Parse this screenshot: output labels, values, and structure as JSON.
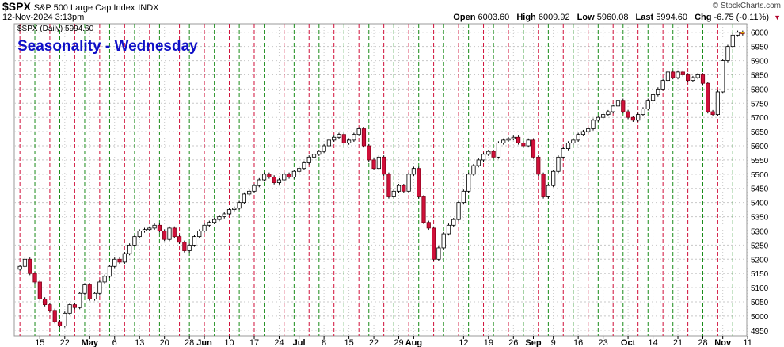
{
  "header": {
    "symbol": "$SPX",
    "name": "S&P 500 Large Cap Index",
    "exchange": "INDX",
    "datetime": "12-Nov-2024 3:13pm",
    "brand": "© StockCharts.com",
    "open_label": "Open",
    "open": "6003.60",
    "high_label": "High",
    "high": "6009.92",
    "low_label": "Low",
    "low": "5960.08",
    "last_label": "Last",
    "last": "5994.60",
    "chg_label": "Chg",
    "chg": "-6.75 (-0.11%)",
    "chg_arrow": "▼"
  },
  "chart_data": {
    "type": "candlestick",
    "title": "Seasonality - Wednesday",
    "legend": "$SPX (Daily) 5994.60",
    "legend_placement": "top-left",
    "ylim": [
      4930,
      6030
    ],
    "yticks": [
      4950,
      5000,
      5050,
      5100,
      5150,
      5200,
      5250,
      5300,
      5350,
      5400,
      5450,
      5500,
      5550,
      5600,
      5650,
      5700,
      5750,
      5800,
      5850,
      5900,
      5950,
      6000
    ],
    "grid": true,
    "colors": {
      "up": "#ffffff",
      "down": "#d0103a",
      "grid": "#c8c8c8",
      "vline_red": "#d0103a",
      "vline_green": "#1a8c1a",
      "last": "#f0d000",
      "title": "#1010c8"
    },
    "x_tick_labels": [
      "15",
      "22",
      "May",
      "6",
      "13",
      "20",
      "28",
      "Jun",
      "10",
      "17",
      "24",
      "Jul",
      "8",
      "15",
      "22",
      "29",
      "Aug",
      "12",
      "19",
      "26",
      "Sep",
      "9",
      "16",
      "23",
      "Oct",
      "14",
      "21",
      "28",
      "Nov",
      "11"
    ],
    "x_tick_index": [
      4,
      9,
      14,
      19,
      24,
      29,
      34,
      37,
      42,
      47,
      52,
      56,
      61,
      66,
      71,
      76,
      79,
      89,
      94,
      99,
      103,
      107,
      112,
      117,
      122,
      127,
      132,
      137,
      141,
      146
    ],
    "x_tick_bold": [
      "May",
      "Jun",
      "Jul",
      "Aug",
      "Sep",
      "Oct",
      "Nov"
    ],
    "red_line_index": [
      0,
      6,
      11,
      16,
      21,
      26,
      32,
      37,
      42,
      47,
      53,
      58,
      63,
      68,
      73,
      78,
      83,
      88,
      93,
      98,
      104,
      109,
      114,
      119,
      124,
      129,
      134,
      140
    ],
    "green_line_index": [
      3,
      8,
      13,
      18,
      23,
      28,
      34,
      39,
      44,
      49,
      55,
      60,
      65,
      70,
      75,
      80,
      85,
      90,
      95,
      101,
      106,
      111,
      116,
      121,
      126,
      131,
      137,
      143
    ],
    "close": [
      5175,
      5200,
      5150,
      5120,
      5060,
      5040,
      5020,
      4980,
      4965,
      5010,
      5040,
      5030,
      5080,
      5110,
      5060,
      5080,
      5120,
      5140,
      5175,
      5200,
      5190,
      5220,
      5250,
      5280,
      5300,
      5305,
      5310,
      5320,
      5300,
      5270,
      5310,
      5280,
      5260,
      5230,
      5250,
      5280,
      5300,
      5320,
      5330,
      5340,
      5350,
      5360,
      5375,
      5380,
      5400,
      5430,
      5440,
      5460,
      5480,
      5500,
      5490,
      5470,
      5480,
      5500,
      5490,
      5510,
      5520,
      5540,
      5560,
      5570,
      5580,
      5600,
      5620,
      5630,
      5640,
      5610,
      5620,
      5640,
      5660,
      5600,
      5550,
      5520,
      5560,
      5500,
      5420,
      5440,
      5460,
      5440,
      5500,
      5520,
      5420,
      5330,
      5310,
      5200,
      5240,
      5290,
      5320,
      5340,
      5400,
      5440,
      5500,
      5530,
      5550,
      5570,
      5580,
      5560,
      5610,
      5620,
      5625,
      5630,
      5610,
      5600,
      5620,
      5560,
      5500,
      5420,
      5460,
      5510,
      5560,
      5590,
      5610,
      5620,
      5640,
      5650,
      5660,
      5690,
      5700,
      5710,
      5720,
      5740,
      5760,
      5720,
      5700,
      5690,
      5710,
      5730,
      5760,
      5780,
      5800,
      5830,
      5860,
      5840,
      5860,
      5850,
      5830,
      5840,
      5850,
      5820,
      5720,
      5710,
      5790,
      5900,
      5950,
      5990,
      6000,
      5994.6
    ],
    "last_close": 5994.6
  }
}
